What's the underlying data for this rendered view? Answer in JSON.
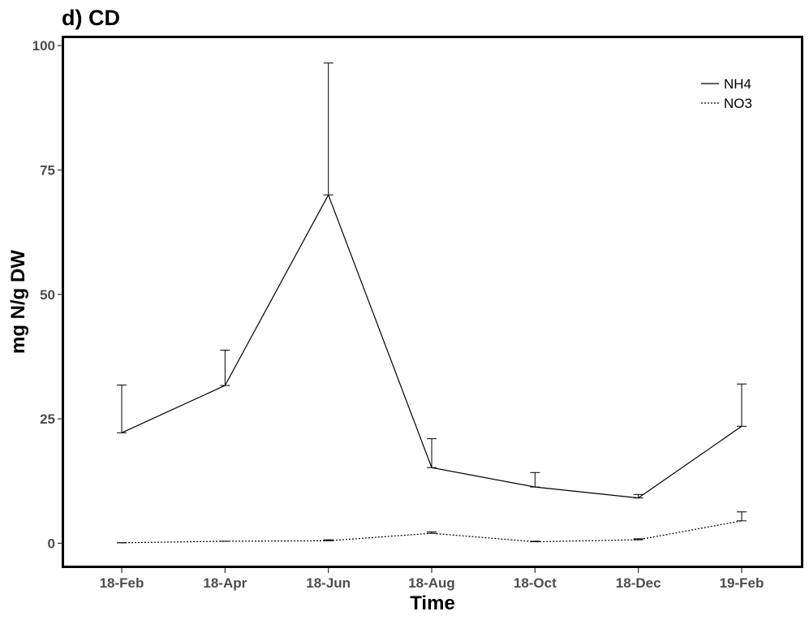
{
  "chart_data": {
    "type": "line",
    "title": "d) CD",
    "xlabel": "Time",
    "ylabel": "mg N/g DW",
    "categories": [
      "18-Feb",
      "18-Apr",
      "18-Jun",
      "18-Aug",
      "18-Oct",
      "18-Dec",
      "19-Feb"
    ],
    "yticks": [
      "0",
      "25",
      "50",
      "75",
      "100"
    ],
    "ylim": [
      -4.5,
      101.5
    ],
    "grid": false,
    "legend_position": "top-right",
    "series": [
      {
        "name": "NH4",
        "line_style": "solid",
        "values": [
          22.2,
          31.7,
          70.0,
          15.2,
          11.3,
          9.1,
          23.5
        ],
        "error_upper": [
          31.8,
          38.8,
          96.5,
          21.0,
          14.2,
          9.8,
          32.0
        ]
      },
      {
        "name": "NO3",
        "line_style": "dotted",
        "values": [
          0.1,
          0.4,
          0.5,
          2.0,
          0.3,
          0.7,
          4.5
        ],
        "error_upper": [
          0.1,
          0.4,
          0.7,
          2.3,
          0.4,
          0.9,
          6.3
        ]
      }
    ]
  }
}
